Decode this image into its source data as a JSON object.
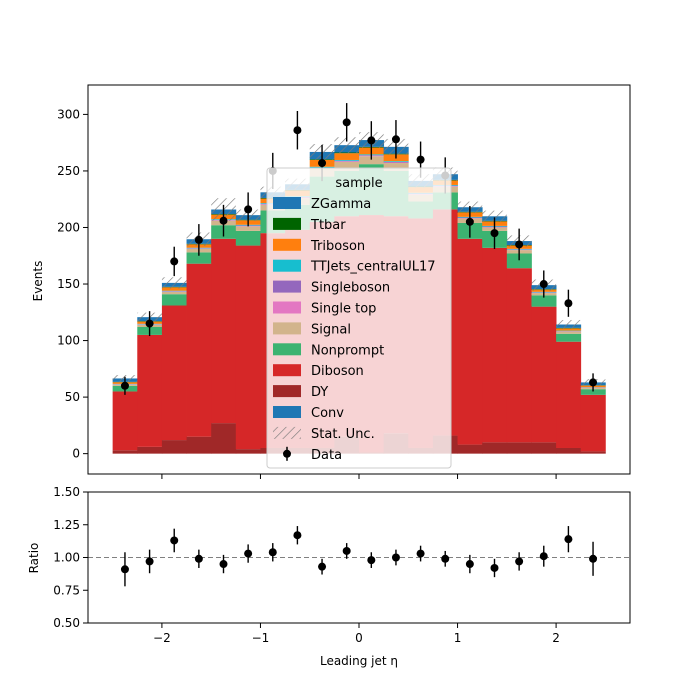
{
  "chart_data": {
    "type": "bar",
    "stacked": true,
    "xlabel": "Leading jet  η",
    "ylabel": "Events",
    "ratio_ylabel": "Ratio",
    "xlim": [
      -2.75,
      2.75
    ],
    "ylim": [
      -18,
      326
    ],
    "ratio_ylim": [
      0.5,
      1.5
    ],
    "x_ticks": [
      -2,
      -1,
      0,
      1,
      2
    ],
    "x_tick_labels": [
      "−2",
      "−1",
      "0",
      "1",
      "2"
    ],
    "y_ticks": [
      0,
      50,
      100,
      150,
      200,
      250,
      300
    ],
    "y_tick_labels": [
      "0",
      "50",
      "100",
      "150",
      "200",
      "250",
      "300"
    ],
    "ratio_ticks": [
      0.5,
      0.75,
      1.0,
      1.25,
      1.5
    ],
    "ratio_tick_labels": [
      "0.50",
      "0.75",
      "1.00",
      "1.25",
      "1.50"
    ],
    "ratio_reference": 1.0,
    "bin_edges": [
      -2.5,
      -2.25,
      -2.0,
      -1.75,
      -1.5,
      -1.25,
      -1.0,
      -0.75,
      -0.5,
      -0.25,
      0.0,
      0.25,
      0.5,
      0.75,
      1.0,
      1.25,
      1.5,
      1.75,
      2.0,
      2.25,
      2.5
    ],
    "x_centers": [
      -2.375,
      -2.125,
      -1.875,
      -1.625,
      -1.375,
      -1.125,
      -0.875,
      -0.625,
      -0.375,
      -0.125,
      0.125,
      0.375,
      0.625,
      0.875,
      1.125,
      1.375,
      1.625,
      1.875,
      2.125,
      2.375
    ],
    "legend": {
      "title": "sample",
      "placement": "upper center",
      "entries": [
        "ZGamma",
        "Ttbar",
        "Triboson",
        "TTJets_centralUL17",
        "Singleboson",
        "Single top",
        "Signal",
        "Nonprompt",
        "Diboson",
        "DY",
        "Conv",
        "Stat. Unc.",
        "Data"
      ]
    },
    "colors": {
      "DY": "#a02828",
      "Diboson": "#d62728",
      "Nonprompt": "#3cb371",
      "Signal": "#d2b48c",
      "Single top": "#e377c2",
      "Singleboson": "#9467bd",
      "TTJets_centralUL17": "#17becf",
      "Triboson": "#ff7f0e",
      "Ttbar": "#006400",
      "ZGamma": "#1f77b4",
      "Conv": "#1f77b4",
      "Stat. Unc.": "#808080",
      "Data": "#000000"
    },
    "series": [
      {
        "name": "DY",
        "values": [
          3,
          6,
          12,
          15,
          27,
          4,
          5,
          5,
          5,
          15,
          1,
          18,
          5,
          16,
          8,
          10,
          10,
          10,
          5,
          2
        ]
      },
      {
        "name": "Diboson",
        "values": [
          52,
          99,
          119,
          153,
          163,
          180,
          190,
          193,
          200,
          195,
          210,
          192,
          203,
          200,
          182,
          172,
          154,
          120,
          94,
          50
        ]
      },
      {
        "name": "Nonprompt",
        "values": [
          5,
          7,
          10,
          10,
          12,
          13,
          20,
          22,
          40,
          40,
          45,
          40,
          15,
          15,
          14,
          15,
          13,
          10,
          7,
          5
        ]
      },
      {
        "name": "Signal",
        "values": [
          1,
          2,
          2,
          3,
          4,
          4,
          5,
          6,
          7,
          8,
          7,
          7,
          6,
          5,
          4,
          3,
          3,
          2,
          2,
          1
        ]
      },
      {
        "name": "Single top",
        "values": [
          0.2,
          0.2,
          0.3,
          0.3,
          0.4,
          0.4,
          0.5,
          0.5,
          0.5,
          0.5,
          0.5,
          0.5,
          0.5,
          0.5,
          0.4,
          0.4,
          0.3,
          0.3,
          0.2,
          0.2
        ]
      },
      {
        "name": "Singleboson",
        "values": [
          0.2,
          0.2,
          0.3,
          0.3,
          0.4,
          0.4,
          0.5,
          0.5,
          0.5,
          0.5,
          0.5,
          0.5,
          0.5,
          0.5,
          0.4,
          0.4,
          0.3,
          0.3,
          0.2,
          0.2
        ]
      },
      {
        "name": "TTJets_centralUL17",
        "values": [
          0.3,
          0.4,
          0.5,
          0.5,
          0.6,
          0.6,
          0.6,
          0.7,
          0.7,
          0.7,
          0.7,
          0.7,
          0.7,
          0.6,
          0.6,
          0.6,
          0.5,
          0.5,
          0.4,
          0.3
        ]
      },
      {
        "name": "Triboson",
        "values": [
          1.5,
          2,
          3,
          3,
          4,
          4,
          4,
          5,
          6,
          6,
          6,
          6,
          5,
          4,
          4,
          4,
          3,
          2,
          2,
          1.5
        ]
      },
      {
        "name": "Ttbar",
        "values": [
          0.3,
          0.4,
          0.4,
          0.5,
          0.5,
          0.5,
          0.5,
          0.5,
          0.6,
          0.6,
          0.6,
          0.6,
          0.5,
          0.5,
          0.5,
          0.5,
          0.4,
          0.4,
          0.4,
          0.3
        ]
      },
      {
        "name": "ZGamma",
        "values": [
          3,
          3.5,
          3.5,
          4,
          4,
          4,
          5,
          5,
          6.5,
          6.5,
          6,
          6,
          5,
          5,
          4,
          4,
          3.5,
          3.5,
          3,
          2.5
        ]
      },
      {
        "name": "Conv",
        "values": [
          0,
          0,
          0,
          0,
          0,
          0,
          0,
          0,
          0,
          0,
          0,
          0,
          0,
          0,
          0,
          0,
          0,
          0,
          0,
          0
        ]
      }
    ],
    "stat_unc": [
      3,
      4,
      5,
      6,
      10,
      5,
      5,
      5,
      7,
      7,
      7,
      7,
      6,
      6,
      5,
      5,
      5,
      5,
      4,
      3
    ],
    "data": {
      "name": "Data",
      "values": [
        60,
        115,
        170,
        189,
        206,
        216,
        250,
        286,
        257,
        293,
        277,
        278,
        260,
        246,
        205,
        195,
        185,
        150,
        133,
        63
      ],
      "errors": [
        8,
        11,
        13,
        14,
        14,
        15,
        16,
        17,
        16,
        17,
        17,
        17,
        16,
        16,
        14,
        14,
        14,
        12,
        12,
        8
      ]
    },
    "ratio": {
      "values": [
        0.91,
        0.97,
        1.13,
        0.99,
        0.95,
        1.03,
        1.04,
        1.17,
        0.93,
        1.05,
        0.98,
        1.0,
        1.03,
        0.99,
        0.95,
        0.92,
        0.97,
        1.01,
        1.14,
        0.99
      ],
      "errors": [
        0.13,
        0.09,
        0.09,
        0.07,
        0.07,
        0.07,
        0.07,
        0.07,
        0.06,
        0.06,
        0.06,
        0.06,
        0.06,
        0.06,
        0.07,
        0.07,
        0.07,
        0.08,
        0.1,
        0.13
      ]
    }
  }
}
